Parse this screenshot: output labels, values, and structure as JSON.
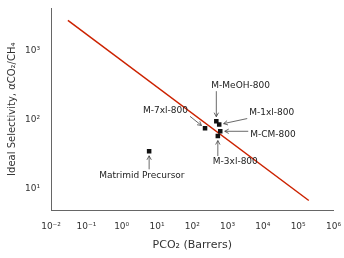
{
  "chart_data": {
    "type": "scatter",
    "xlabel": "PCO₂ (Barrers)",
    "ylabel": "Ideal Selectivity, αCO₂/CH₄",
    "log": true,
    "grid": false,
    "xlim": [
      0.01,
      1000000
    ],
    "ylim": [
      5,
      4000
    ],
    "xticks": [
      {
        "value": 0.01,
        "label": "10⁻²"
      },
      {
        "value": 0.1,
        "label": "10⁻¹"
      },
      {
        "value": 1,
        "label": "10⁰"
      },
      {
        "value": 10,
        "label": "10¹"
      },
      {
        "value": 100,
        "label": "10²"
      },
      {
        "value": 1000,
        "label": "10³"
      },
      {
        "value": 10000,
        "label": "10⁴"
      },
      {
        "value": 100000,
        "label": "10⁵"
      },
      {
        "value": 1000000,
        "label": "10⁶"
      }
    ],
    "yticks": [
      {
        "value": 10,
        "label": "10¹"
      },
      {
        "value": 100,
        "label": "10²"
      },
      {
        "value": 1000,
        "label": "10³"
      }
    ],
    "series": [
      {
        "type": "line",
        "color": "#cc2200",
        "x": [
          0.03,
          200000
        ],
        "values": [
          2683.45,
          6.8487
        ]
      },
      {
        "type": "scatter",
        "color": "#111111",
        "marker": "square",
        "x": [
          6.0,
          230,
          480,
          580,
          620,
          530
        ],
        "values": [
          35,
          75,
          95,
          85,
          68,
          58
        ],
        "labels": [
          "Matrimid Precursor",
          "M-7xl-800",
          "M-MeOH-800",
          "M-1xl-800",
          "M-CM-800",
          "M-3xl-800"
        ]
      }
    ]
  }
}
